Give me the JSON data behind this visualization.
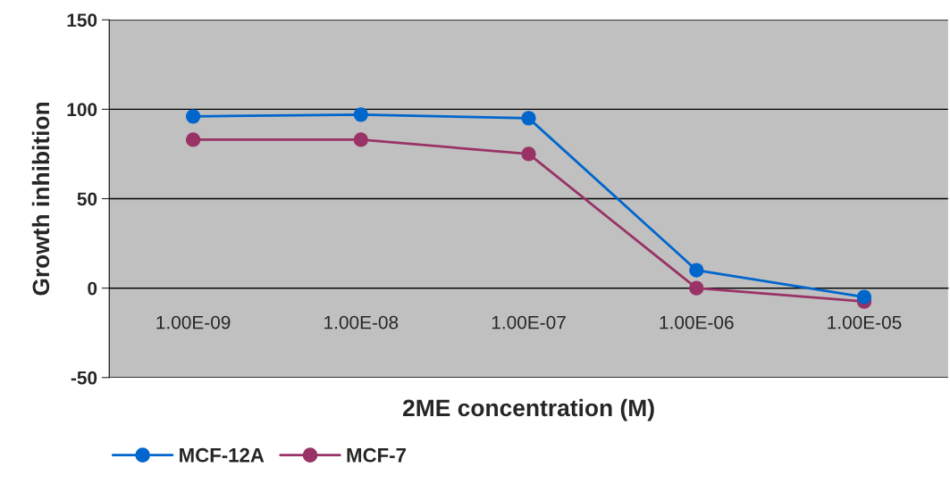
{
  "chart_data": {
    "type": "line",
    "xlabel": "2ME concentration (M)",
    "ylabel": "Growth inhibition",
    "categories": [
      "1.00E-09",
      "1.00E-08",
      "1.00E-07",
      "1.00E-06",
      "1.00E-05"
    ],
    "series": [
      {
        "name": "MCF-12A",
        "color": "#0066cc",
        "values": [
          96,
          97,
          95,
          10,
          -5
        ]
      },
      {
        "name": "MCF-7",
        "color": "#993366",
        "values": [
          83,
          83,
          75,
          0,
          -7.5
        ]
      }
    ],
    "ylim": [
      -50,
      150
    ],
    "yticks": [
      -50,
      0,
      50,
      100,
      150
    ],
    "grid": "y",
    "legend": "bottom",
    "marker": "circle",
    "line_style": "solid"
  }
}
